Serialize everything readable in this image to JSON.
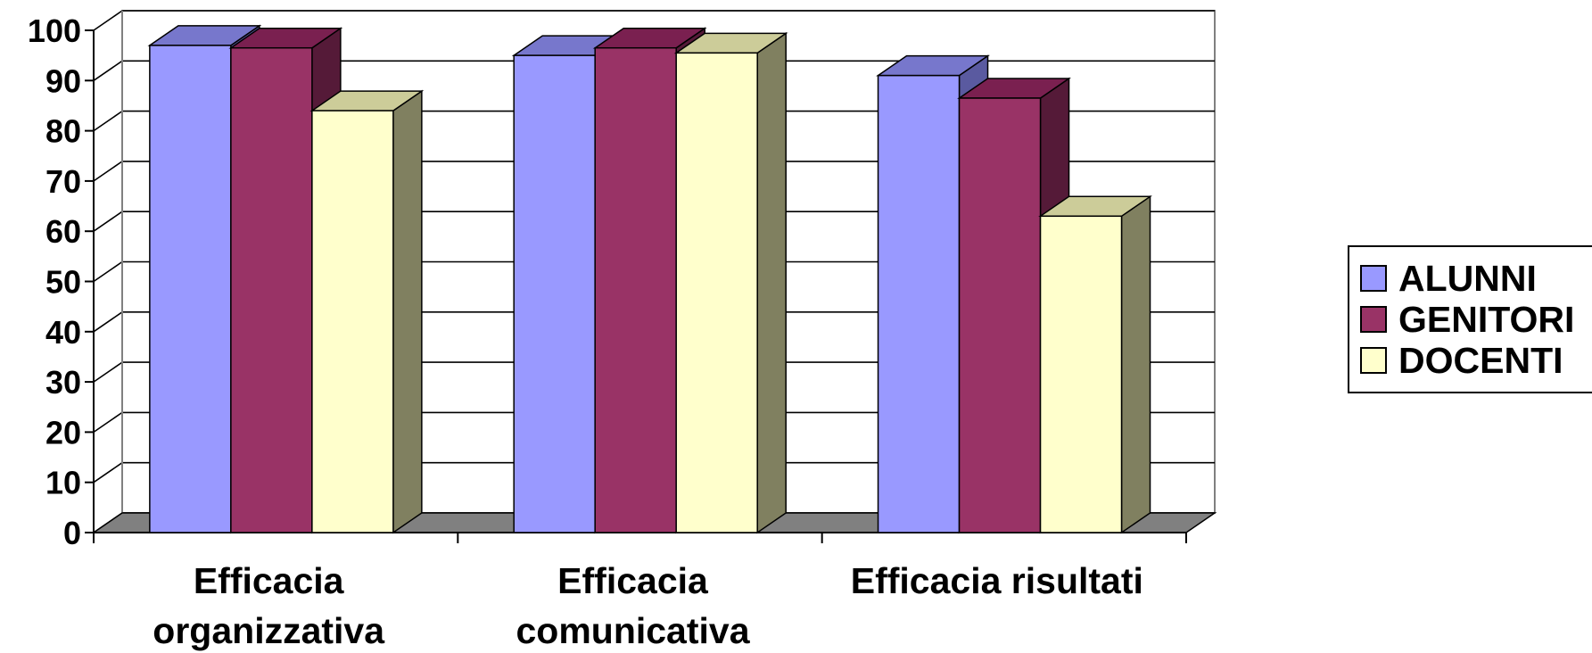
{
  "chart_data": {
    "type": "bar",
    "title": "",
    "xlabel": "",
    "ylabel": "",
    "categories": [
      [
        "Efficacia",
        "organizzativa"
      ],
      [
        "Efficacia",
        "comunicativa"
      ],
      [
        "Efficacia risultati"
      ]
    ],
    "series": [
      {
        "name": "ALUNNI",
        "values": [
          97,
          95,
          91
        ],
        "color": "#9999FF",
        "top": "#7777CC",
        "side": "#5A5AA0"
      },
      {
        "name": "GENITORI",
        "values": [
          96.5,
          96.5,
          86.5
        ],
        "color": "#993366",
        "top": "#7A2050",
        "side": "#551A38"
      },
      {
        "name": "DOCENTI",
        "values": [
          84,
          95.5,
          63
        ],
        "color": "#FFFFCC",
        "top": "#CCCC99",
        "side": "#808060"
      }
    ],
    "ylim": [
      0,
      100
    ],
    "yticks": [
      "0",
      "10",
      "20",
      "30",
      "40",
      "50",
      "60",
      "70",
      "80",
      "90",
      "100"
    ],
    "grid": true,
    "legend_position": "right",
    "floor_color": "#808080"
  }
}
